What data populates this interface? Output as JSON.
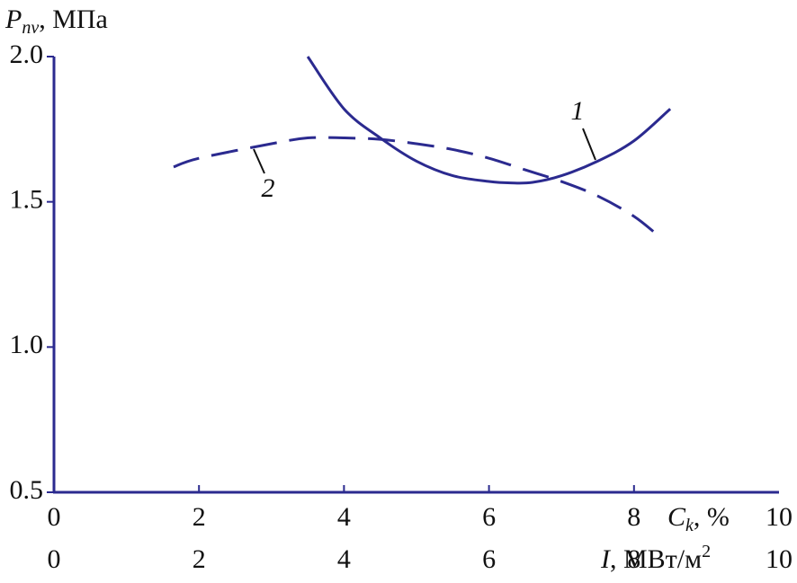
{
  "chart_data": {
    "type": "line",
    "y_label": {
      "symbol": "P",
      "subscript": "nv",
      "unit": ", МПа"
    },
    "x_label": {
      "symbol": "C",
      "subscript": "k",
      "unit": ", %"
    },
    "x2_label": {
      "symbol": "I",
      "unit": ", МВт/м",
      "superscript": "2"
    },
    "xlim": [
      0,
      10
    ],
    "xticks": [
      0,
      2,
      4,
      6,
      8,
      10
    ],
    "x2lim": [
      0,
      10
    ],
    "x2ticks": [
      0,
      2,
      4,
      6,
      8,
      10
    ],
    "ylim": [
      0.5,
      2.0
    ],
    "yticks": [
      {
        "value": 0.5,
        "label": "0.5"
      },
      {
        "value": 1,
        "label": "1.0"
      },
      {
        "value": 1.5,
        "label": "1.5"
      },
      {
        "value": 2,
        "label": "2.0"
      }
    ],
    "series": [
      {
        "name": "1",
        "color": "#2b2a8f",
        "dash": false,
        "x": [
          3.5,
          4,
          4.5,
          5,
          5.5,
          6,
          6.3,
          6.6,
          7,
          7.5,
          8,
          8.5
        ],
        "values": [
          2.0,
          1.82,
          1.72,
          1.64,
          1.59,
          1.57,
          1.565,
          1.567,
          1.59,
          1.64,
          1.71,
          1.82
        ]
      },
      {
        "name": "2",
        "color": "#2b2a8f",
        "dash": true,
        "x": [
          1.65,
          2,
          3,
          3.5,
          4,
          4.5,
          5,
          5.5,
          6,
          6.5,
          7,
          7.5,
          8,
          8.35
        ],
        "values": [
          1.62,
          1.65,
          1.7,
          1.72,
          1.72,
          1.715,
          1.7,
          1.68,
          1.65,
          1.61,
          1.57,
          1.52,
          1.45,
          1.38
        ]
      }
    ]
  }
}
